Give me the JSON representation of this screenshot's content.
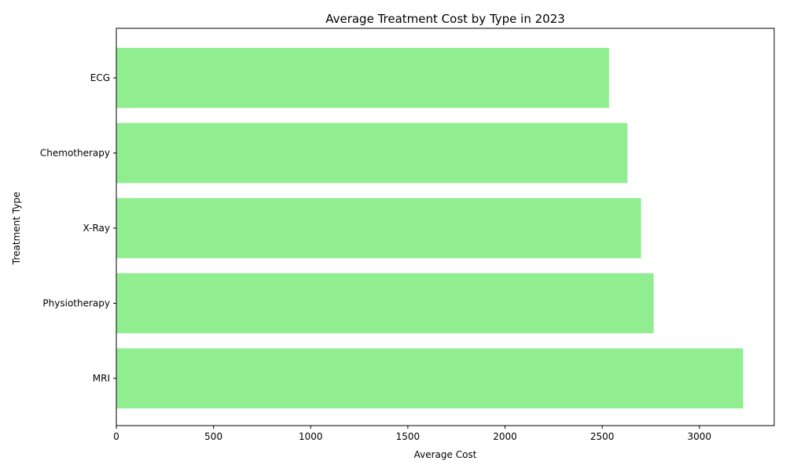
{
  "chart_data": {
    "type": "bar",
    "orientation": "horizontal",
    "title": "Average Treatment Cost by Type in 2023",
    "xlabel": "Average Cost",
    "ylabel": "Treatment Type",
    "categories": [
      "MRI",
      "Physiotherapy",
      "X-Ray",
      "Chemotherapy",
      "ECG"
    ],
    "values": [
      3225,
      2765,
      2700,
      2630,
      2535
    ],
    "xlim": [
      0,
      3385
    ],
    "xticks": [
      0,
      500,
      1000,
      1500,
      2000,
      2500,
      3000
    ],
    "xtick_labels": [
      "0",
      "500",
      "1000",
      "1500",
      "2000",
      "2500",
      "3000"
    ],
    "bar_color": "#90ee90",
    "grid": false,
    "legend": "none"
  }
}
